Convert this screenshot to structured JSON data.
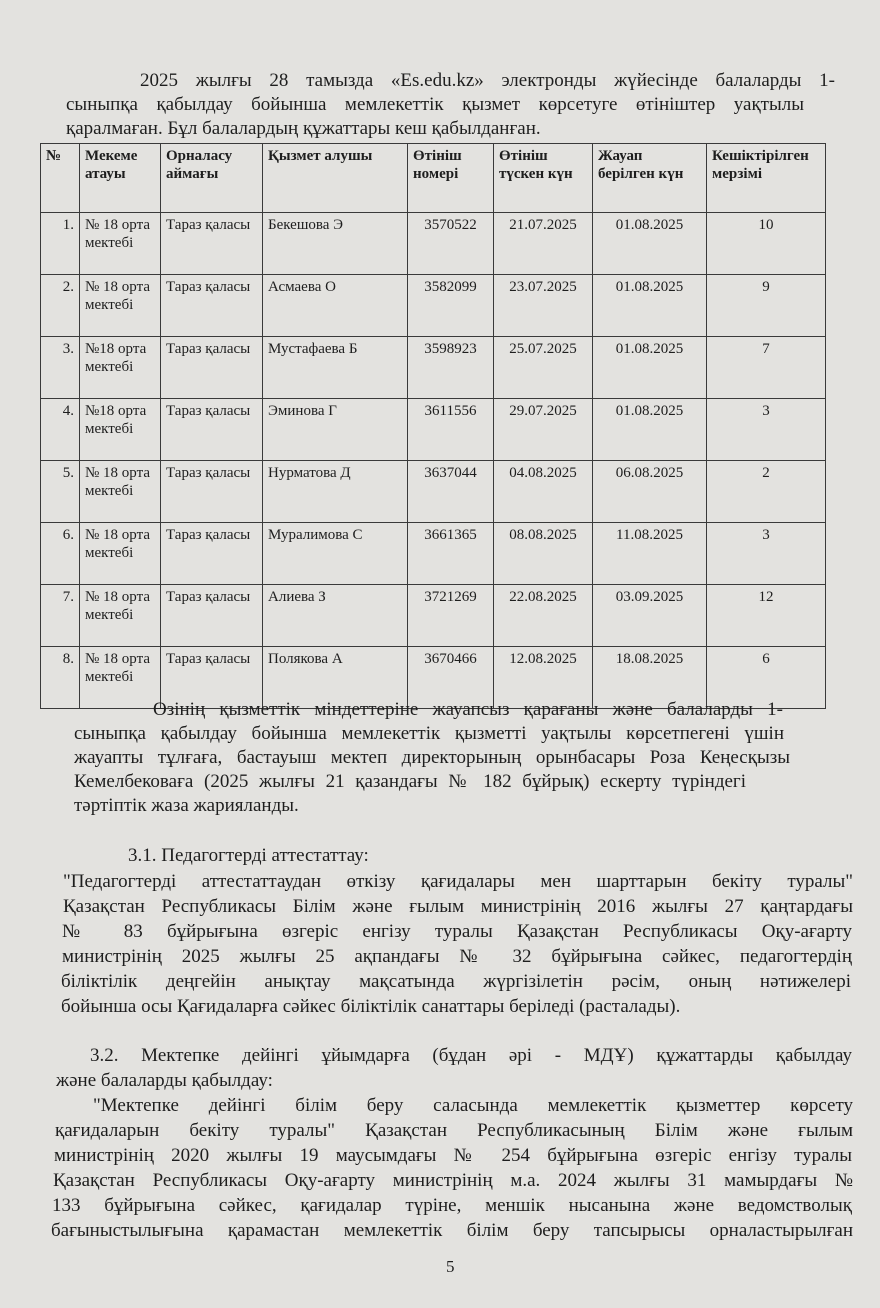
{
  "intro_lines": [
    "2025 жылғы 28 тамызда «Es.edu.kz» электронды жүйесінде балаларды 1-",
    "сыныпқа қабылдау бойынша мемлекеттік қызмет көрсетуге өтініштер уақтылы",
    "қаралмаған. Бұл балалардың құжаттары кеш қабылданған."
  ],
  "table": {
    "headers": [
      "№",
      "Мекеме атауы",
      "Орналасу аймағы",
      "Қызмет алушы",
      "Өтініш номері",
      "Өтініш түскен күн",
      "Жауап берілген күн",
      "Кешіктірілген мерзімі"
    ],
    "rows": [
      [
        "1.",
        "№ 18 орта мектебі",
        "Тараз қаласы",
        "Бекешова Э",
        "3570522",
        "21.07.2025",
        "01.08.2025",
        "10"
      ],
      [
        "2.",
        "№ 18 орта мектебі",
        "Тараз қаласы",
        "Асмаева О",
        "3582099",
        "23.07.2025",
        "01.08.2025",
        "9"
      ],
      [
        "3.",
        "№18 орта мектебі",
        "Тараз қаласы",
        "Мустафаева Б",
        "3598923",
        "25.07.2025",
        "01.08.2025",
        "7"
      ],
      [
        "4.",
        "№18 орта мектебі",
        "Тараз қаласы",
        "Эминова Г",
        "3611556",
        "29.07.2025",
        "01.08.2025",
        "3"
      ],
      [
        "5.",
        "№ 18 орта мектебі",
        "Тараз қаласы",
        "Нурматова Д",
        "3637044",
        "04.08.2025",
        "06.08.2025",
        "2"
      ],
      [
        "6.",
        "№ 18 орта мектебі",
        "Тараз қаласы",
        "Муралимова С",
        "3661365",
        "08.08.2025",
        "11.08.2025",
        "3"
      ],
      [
        "7.",
        "№ 18 орта мектебі",
        "Тараз қаласы",
        "Алиева З",
        "3721269",
        "22.08.2025",
        "03.09.2025",
        "12"
      ],
      [
        "8.",
        "№ 18 орта мектебі",
        "Тараз қаласы",
        "Полякова А",
        "3670466",
        "12.08.2025",
        "18.08.2025",
        "6"
      ]
    ]
  },
  "reprimand_lines": [
    "Өзінің қызметтік міндеттеріне жауапсыз қарағаны және балаларды 1-",
    "сыныпқа қабылдау бойынша мемлекеттік қызметті уақтылы көрсетпегені үшін",
    "жауапты тұлғаға, бастауыш мектеп директорының орынбасары Роза Кеңесқызы",
    "Кемелбековаға (2025 жылғы 21 қазандағы № 182 бұйрық) ескерту түріндегі",
    "тәртіптік жаза жарияланды."
  ],
  "section_3_1": {
    "heading": "3.1. Педагогтерді аттестаттау:",
    "lines": [
      "\"Педагогтерді аттестаттаудан өткізу қағидалары мен шарттарын бекіту туралы\"",
      "Қазақстан Республикасы Білім және ғылым министрінің 2016 жылғы 27 қаңтардағы",
      "№ 83 бұйрығына өзгеріс енгізу туралы Қазақстан Республикасы Оқу-ағарту",
      "министрінің 2025 жылғы 25 ақпандағы № 32 бұйрығына сәйкес, педагогтердің",
      "біліктілік деңгейін анықтау мақсатында жүргізілетін рәсім, оның нәтижелері",
      "бойынша осы Қағидаларға сәйкес біліктілік санаттары беріледі (расталады)."
    ]
  },
  "section_3_2": {
    "heading_lines": [
      "3.2. Мектепке дейінгі ұйымдарға (бұдан әрі - МДҰ) құжаттарды қабылдау",
      "және балаларды қабылдау:"
    ],
    "lines": [
      "\"Мектепке дейінгі білім беру саласында мемлекеттік қызметтер көрсету",
      "қағидаларын бекіту туралы\" Қазақстан Республикасының Білім және ғылым",
      "министрінің 2020 жылғы 19 маусымдағы № 254 бұйрығына өзгеріс енгізу туралы",
      "Қазақстан Республикасы Оқу-ағарту министрінің м.а. 2024 жылғы 31 мамырдағы №",
      "133 бұйрығына сәйкес, қағидалар түріне, меншік нысанына және ведомстволық",
      "бағыныстылығына қарамастан мемлекеттік білім беру тапсырысы орналастырылған"
    ]
  },
  "page_number": "5"
}
